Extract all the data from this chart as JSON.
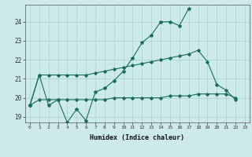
{
  "xlabel": "Humidex (Indice chaleur)",
  "background_color": "#cceaea",
  "line_color": "#1a6b5a",
  "grid_color": "#aacfcf",
  "x_ticks": [
    0,
    1,
    2,
    3,
    4,
    5,
    6,
    7,
    8,
    9,
    10,
    11,
    12,
    13,
    14,
    15,
    16,
    17,
    18,
    19,
    20,
    21,
    22,
    23
  ],
  "y_ticks": [
    19,
    20,
    21,
    22,
    23,
    24
  ],
  "ylim": [
    18.7,
    24.9
  ],
  "xlim": [
    -0.5,
    23.5
  ],
  "line1_x": [
    0,
    1,
    2,
    3,
    4,
    5,
    6,
    7,
    8,
    9,
    10,
    11,
    12,
    13,
    14,
    15,
    16,
    17
  ],
  "line1_y": [
    19.6,
    21.2,
    19.6,
    19.9,
    18.7,
    19.4,
    18.8,
    20.3,
    20.5,
    20.9,
    21.4,
    22.1,
    22.9,
    23.3,
    24.0,
    24.0,
    23.8,
    24.7
  ],
  "line2_x": [
    0,
    1,
    2,
    3,
    4,
    5,
    6,
    7,
    8,
    9,
    10,
    11,
    12,
    13,
    14,
    15,
    16,
    17,
    18,
    19,
    20,
    21,
    22
  ],
  "line2_y": [
    19.6,
    21.2,
    21.2,
    21.2,
    21.2,
    21.2,
    21.2,
    21.3,
    21.4,
    21.5,
    21.6,
    21.7,
    21.8,
    21.9,
    22.0,
    22.1,
    22.2,
    22.3,
    22.5,
    21.9,
    20.7,
    20.4,
    19.9
  ],
  "line3_x": [
    0,
    1,
    2,
    3,
    4,
    5,
    6,
    7,
    8,
    9,
    10,
    11,
    12,
    13,
    14,
    15,
    16,
    17,
    18,
    19,
    20,
    21,
    22
  ],
  "line3_y": [
    19.6,
    19.9,
    19.9,
    19.9,
    19.9,
    19.9,
    19.9,
    19.9,
    19.9,
    20.0,
    20.0,
    20.0,
    20.0,
    20.0,
    20.0,
    20.1,
    20.1,
    20.1,
    20.2,
    20.2,
    20.2,
    20.2,
    20.0
  ]
}
